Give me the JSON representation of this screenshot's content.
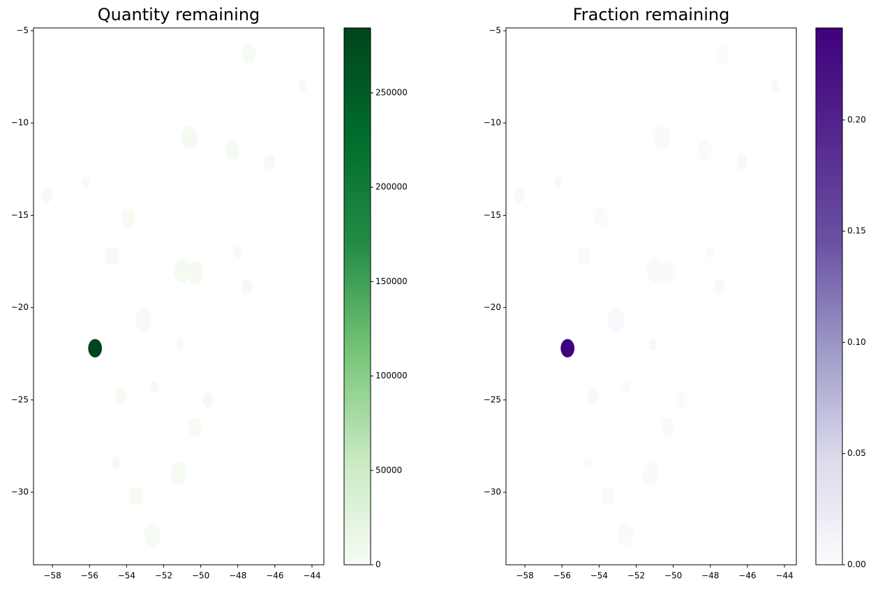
{
  "chart_data": [
    {
      "type": "choropleth",
      "title": "Quantity remaining",
      "x": [
        -44.5,
        -46.3,
        -48.3,
        -50.6,
        -56.2,
        -58.3,
        -53.9,
        -51,
        -48,
        -47.5,
        -54.8,
        -53.1,
        -52.5,
        -54.3,
        -53.5,
        -52.6,
        -51.1,
        -49.6,
        -50.3,
        -51.2,
        -54.6,
        -55.7,
        -47.4,
        -50.3
      ],
      "y": [
        -8,
        -12.1,
        -11.5,
        -10.8,
        -13.2,
        -13.9,
        -15.1,
        -18,
        -17,
        -18.9,
        -17.2,
        -20.7,
        -24.3,
        -24.8,
        -30.2,
        -32.3,
        -22,
        -25,
        -26.5,
        -29,
        -28.4,
        -22.2,
        -6.3,
        -18.1
      ],
      "values": [
        2500,
        3000,
        1800,
        2200,
        3500,
        2800,
        1500,
        3200,
        2600,
        2900,
        2000,
        2700,
        1900,
        2400,
        2100,
        1700,
        1600,
        2300,
        1400,
        1300,
        1800,
        284000,
        900,
        2000
      ],
      "colors": [
        "#f7fcf5",
        "#c7e9c0",
        "#74c476",
        "#238b45",
        "#006d2c",
        "#00441b"
      ],
      "xlim": [
        -59.02,
        -43.36
      ],
      "ylim": [
        -33.93,
        -4.85
      ],
      "xticks": [
        {
          "value": -58,
          "label": "−58"
        },
        {
          "value": -56,
          "label": "−56"
        },
        {
          "value": -54,
          "label": "−54"
        },
        {
          "value": -52,
          "label": "−52"
        },
        {
          "value": -50,
          "label": "−50"
        },
        {
          "value": -48,
          "label": "−48"
        },
        {
          "value": -46,
          "label": "−46"
        },
        {
          "value": -44,
          "label": "−44"
        }
      ],
      "yticks": [
        {
          "value": -5,
          "label": "−5"
        },
        {
          "value": -10,
          "label": "−10"
        },
        {
          "value": -15,
          "label": "−15"
        },
        {
          "value": -20,
          "label": "−20"
        },
        {
          "value": -25,
          "label": "−25"
        },
        {
          "value": -30,
          "label": "−30"
        }
      ],
      "clim": [
        0,
        284400
      ],
      "cticks": [
        0,
        50000,
        100000,
        150000,
        200000,
        250000
      ]
    },
    {
      "type": "choropleth",
      "title": "Fraction remaining",
      "x": [
        -44.5,
        -46.3,
        -48.3,
        -50.6,
        -56.2,
        -58.3,
        -53.9,
        -51,
        -48,
        -47.5,
        -54.8,
        -53.1,
        -52.5,
        -54.3,
        -53.5,
        -52.6,
        -51.1,
        -49.6,
        -50.3,
        -51.2,
        -54.6,
        -55.7,
        -47.4,
        -50.3
      ],
      "y": [
        -8,
        -12.1,
        -11.5,
        -10.8,
        -13.2,
        -13.9,
        -15.1,
        -18,
        -17,
        -18.9,
        -17.2,
        -20.7,
        -24.3,
        -24.8,
        -30.2,
        -32.3,
        -22,
        -25,
        -26.5,
        -29,
        -28.4,
        -22.2,
        -6.3,
        -18.1
      ],
      "values": [
        0.004,
        0.006,
        0.003,
        0.003,
        0.005,
        0.004,
        0.003,
        0.004,
        0.003,
        0.004,
        0.003,
        0.004,
        0.003,
        0.004,
        0.003,
        0.003,
        0.005,
        0.003,
        0.003,
        0.003,
        0.003,
        0.24,
        0.002,
        0.003
      ],
      "colors": [
        "#fcfbfd",
        "#dadaeb",
        "#9e9ac8",
        "#6a51a3",
        "#54278f",
        "#3f007d"
      ],
      "xlim": [
        -59.02,
        -43.36
      ],
      "ylim": [
        -33.93,
        -4.85
      ],
      "xticks": [
        {
          "value": -58,
          "label": "−58"
        },
        {
          "value": -56,
          "label": "−56"
        },
        {
          "value": -54,
          "label": "−54"
        },
        {
          "value": -52,
          "label": "−52"
        },
        {
          "value": -50,
          "label": "−50"
        },
        {
          "value": -48,
          "label": "−48"
        },
        {
          "value": -46,
          "label": "−46"
        },
        {
          "value": -44,
          "label": "−44"
        }
      ],
      "yticks": [
        {
          "value": -5,
          "label": "−5"
        },
        {
          "value": -10,
          "label": "−10"
        },
        {
          "value": -15,
          "label": "−15"
        },
        {
          "value": -20,
          "label": "−20"
        },
        {
          "value": -25,
          "label": "−25"
        },
        {
          "value": -30,
          "label": "−30"
        }
      ],
      "clim": [
        0,
        0.2414
      ],
      "cticks": [
        {
          "value": 0,
          "label": "0.00"
        },
        0.05,
        {
          "value": 0.1,
          "label": "0.10"
        },
        0.15,
        {
          "value": 0.2,
          "label": "0.20"
        }
      ]
    }
  ]
}
